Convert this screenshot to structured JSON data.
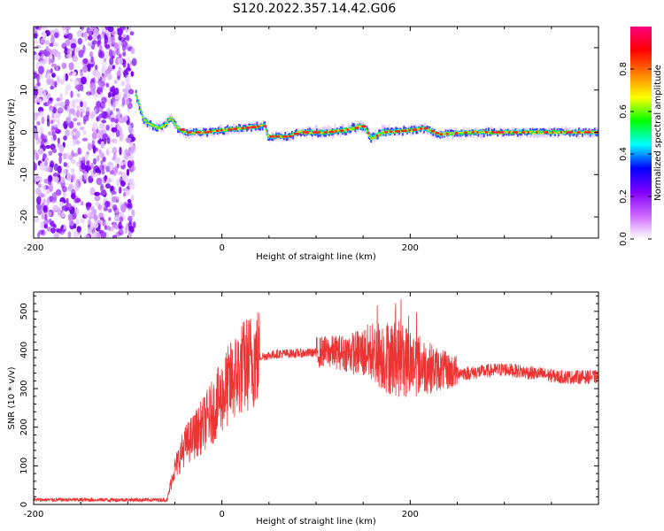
{
  "title": "S120.2022.357.14.42.G06",
  "chart_data": [
    {
      "type": "heatmap",
      "xlabel": "Height of straight line (km)",
      "ylabel": "Frequency (Hz)",
      "xlim": [
        -200,
        400
      ],
      "ylim": [
        -25,
        25
      ],
      "xticks": [
        "-200",
        "0",
        "200"
      ],
      "yticks": [
        "-20",
        "-10",
        "0",
        "10",
        "20"
      ],
      "noise_region_x": [
        -200,
        -93
      ],
      "ridge": [
        {
          "x": -92,
          "y": 9
        },
        {
          "x": -88,
          "y": 6
        },
        {
          "x": -84,
          "y": 3
        },
        {
          "x": -78,
          "y": 2
        },
        {
          "x": -70,
          "y": 1
        },
        {
          "x": -62,
          "y": 1.5
        },
        {
          "x": -55,
          "y": 3.5
        },
        {
          "x": -48,
          "y": 1
        },
        {
          "x": -40,
          "y": 0
        },
        {
          "x": -20,
          "y": 0
        },
        {
          "x": 0,
          "y": 0.5
        },
        {
          "x": 20,
          "y": 1
        },
        {
          "x": 45,
          "y": 1.5
        },
        {
          "x": 48,
          "y": -1
        },
        {
          "x": 70,
          "y": -1
        },
        {
          "x": 80,
          "y": 0
        },
        {
          "x": 110,
          "y": 0
        },
        {
          "x": 130,
          "y": 0.5
        },
        {
          "x": 150,
          "y": 1.5
        },
        {
          "x": 158,
          "y": -1.5
        },
        {
          "x": 170,
          "y": 0
        },
        {
          "x": 200,
          "y": 0.5
        },
        {
          "x": 215,
          "y": 1
        },
        {
          "x": 230,
          "y": -0.5
        },
        {
          "x": 260,
          "y": 0
        },
        {
          "x": 400,
          "y": 0
        }
      ],
      "colorbar": {
        "label": "Normalized spectral amplitude",
        "range": [
          0,
          1
        ],
        "ticks": [
          "0.0",
          "0.2",
          "0.4",
          "0.6",
          "0.8"
        ],
        "colors": [
          "#ffffff",
          "#cc66ff",
          "#7f00ff",
          "#0000ff",
          "#00ffff",
          "#00ff00",
          "#ffff00",
          "#ff7f00",
          "#ff0000",
          "#ff0080"
        ]
      }
    },
    {
      "type": "line",
      "xlabel": "Height of straight line (km)",
      "ylabel": "SNR (10 * v/v)",
      "xlim": [
        -200,
        400
      ],
      "ylim": [
        0,
        550
      ],
      "xticks": [
        "-200",
        "0",
        "200"
      ],
      "yticks": [
        "0",
        "100",
        "200",
        "300",
        "400",
        "500"
      ],
      "color": "#ee3333",
      "envelope": [
        {
          "x": -200,
          "y": 12
        },
        {
          "x": -100,
          "y": 12
        },
        {
          "x": -58,
          "y": 12
        },
        {
          "x": -52,
          "y": 80
        },
        {
          "x": -40,
          "y": 150
        },
        {
          "x": -25,
          "y": 190
        },
        {
          "x": -10,
          "y": 240
        },
        {
          "x": 5,
          "y": 300
        },
        {
          "x": 20,
          "y": 350
        },
        {
          "x": 35,
          "y": 380
        },
        {
          "x": 60,
          "y": 390
        },
        {
          "x": 90,
          "y": 392
        },
        {
          "x": 105,
          "y": 395
        },
        {
          "x": 120,
          "y": 395
        },
        {
          "x": 140,
          "y": 392
        },
        {
          "x": 160,
          "y": 395
        },
        {
          "x": 180,
          "y": 380
        },
        {
          "x": 200,
          "y": 370
        },
        {
          "x": 220,
          "y": 355
        },
        {
          "x": 240,
          "y": 345
        },
        {
          "x": 260,
          "y": 340
        },
        {
          "x": 280,
          "y": 345
        },
        {
          "x": 300,
          "y": 350
        },
        {
          "x": 330,
          "y": 340
        },
        {
          "x": 360,
          "y": 330
        },
        {
          "x": 400,
          "y": 330
        }
      ]
    }
  ]
}
